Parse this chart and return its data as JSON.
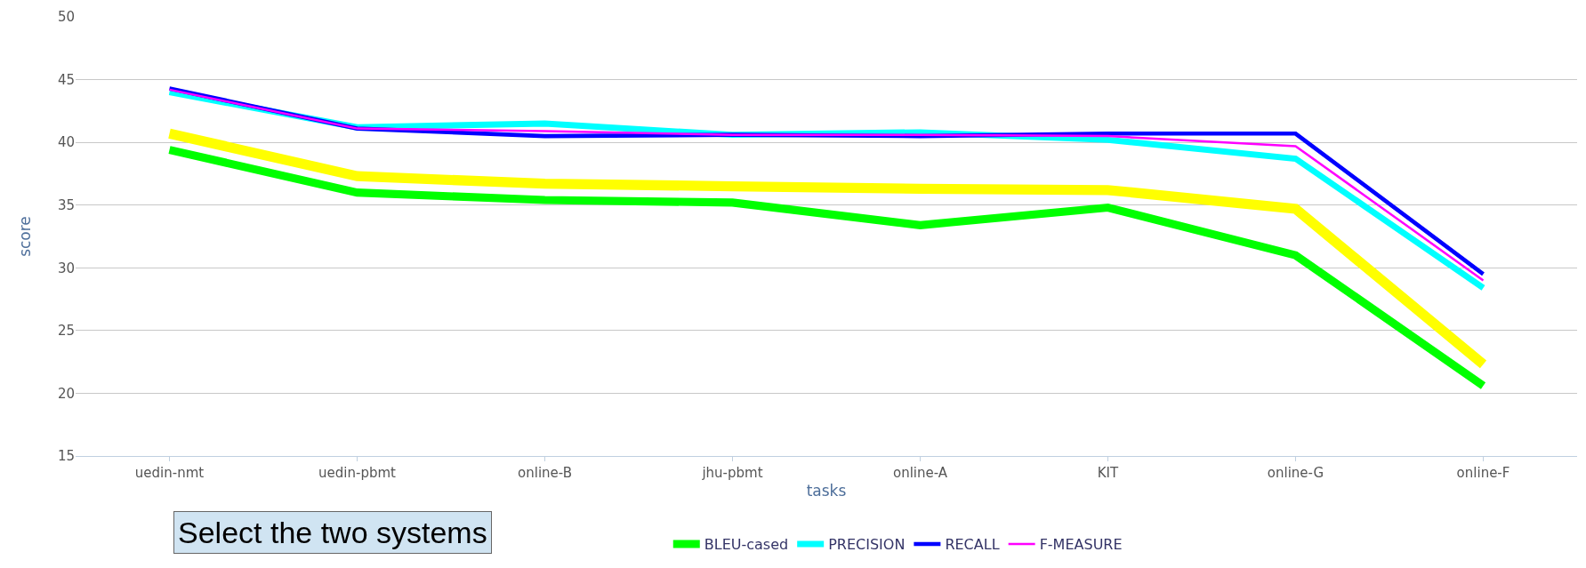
{
  "chart_data": {
    "type": "line",
    "xlabel": "tasks",
    "ylabel": "score",
    "categories": [
      "uedin-nmt",
      "uedin-pbmt",
      "online-B",
      "jhu-pbmt",
      "online-A",
      "KIT",
      "online-G",
      "online-F"
    ],
    "series": [
      {
        "color": "#ffff00",
        "values": [
          40.7,
          37.3,
          36.7,
          36.5,
          36.3,
          36.2,
          34.7,
          22.3
        ]
      },
      {
        "name": "BLEU-cased",
        "color": "#00ff00",
        "values": [
          39.4,
          36.0,
          35.4,
          35.2,
          33.4,
          34.8,
          31.0,
          20.6
        ]
      },
      {
        "name": "PRECISION",
        "color": "#00ffff",
        "values": [
          44.0,
          41.2,
          41.5,
          40.6,
          40.8,
          40.2,
          38.7,
          28.4
        ]
      },
      {
        "name": "RECALL",
        "color": "#0000ff",
        "values": [
          44.3,
          41.1,
          40.5,
          40.6,
          40.5,
          40.7,
          40.7,
          29.5
        ]
      },
      {
        "name": "F-MEASURE",
        "color": "#ff00ff",
        "values": [
          44.2,
          41.1,
          40.9,
          40.6,
          40.6,
          40.5,
          39.7,
          29.0
        ]
      }
    ],
    "ylim": [
      15,
      50
    ],
    "yticks": [
      15,
      20,
      25,
      30,
      35,
      40,
      45,
      50
    ],
    "grid": "y",
    "legend": "bottom",
    "marker": "none",
    "line_style": "solid",
    "annotations": [
      "Select the two systems"
    ]
  }
}
